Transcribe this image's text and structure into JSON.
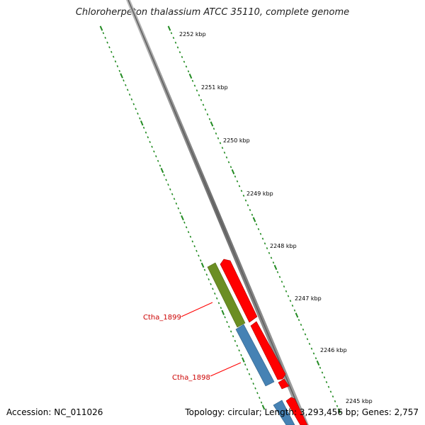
{
  "title": "Chloroherpeton thalassium ATCC 35110, complete genome",
  "footer": {
    "accession": "Accession: NC_011026",
    "summary": "Topology: circular; Length: 3,293,456 bp; Genes: 2,757"
  },
  "ruler": {
    "unit": "kbp",
    "tick_labels": [
      "2252 kbp",
      "2251 kbp",
      "2250 kbp",
      "2249 kbp",
      "2248 kbp",
      "2247 kbp",
      "2246 kbp",
      "2245 kbp"
    ]
  },
  "genes": [
    {
      "label": "Ctha_1899",
      "strand": "reverse",
      "feature": "cds",
      "color": "#6b8e23"
    },
    {
      "label": "Ctha_1898",
      "strand": "reverse",
      "feature": "cds",
      "color": "#4682b4"
    },
    {
      "label": "",
      "strand": "reverse",
      "feature": "cds",
      "color": "#4682b4"
    },
    {
      "label": "",
      "strand": "forward",
      "feature": "cds",
      "color": "#ff0000"
    },
    {
      "label": "",
      "strand": "forward",
      "feature": "cds",
      "color": "#ff0000"
    },
    {
      "label": "",
      "strand": "forward",
      "feature": "cds",
      "color": "#ff0000"
    },
    {
      "label": "",
      "strand": "forward",
      "feature": "cds",
      "color": "#ff0000"
    }
  ],
  "colors": {
    "backbone": "#808080",
    "ruler_ticks": "#228b22",
    "gene_label": "#cc0000",
    "forward_gene": "#ff0000",
    "reverse_gene_a": "#6b8e23",
    "reverse_gene_b": "#4682b4"
  }
}
